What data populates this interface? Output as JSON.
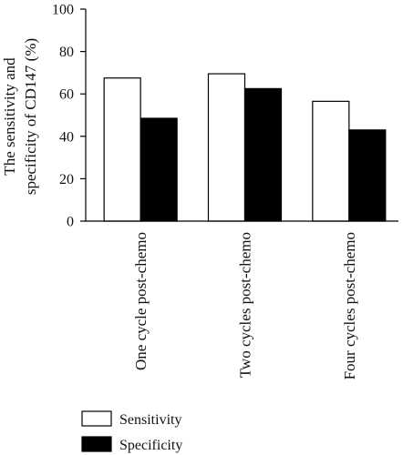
{
  "chart_data": {
    "type": "bar",
    "title": "",
    "xlabel": "",
    "ylabel_lines": [
      "The sensitivity and",
      "specificity of CD147 (%)"
    ],
    "ylim": [
      0,
      100
    ],
    "yticks": [
      0,
      20,
      40,
      60,
      80,
      100
    ],
    "categories": [
      "One cycle post-chemo",
      "Two cycles post-chemo",
      "Four cycles post-chemo"
    ],
    "series": [
      {
        "name": "Sensitivity",
        "values": [
          67.5,
          69.5,
          56.5
        ],
        "fill": "#ffffff"
      },
      {
        "name": "Specificity",
        "values": [
          48.5,
          62.5,
          43.0
        ],
        "fill": "#000000"
      }
    ],
    "grid": false,
    "legend_position": "bottom"
  }
}
